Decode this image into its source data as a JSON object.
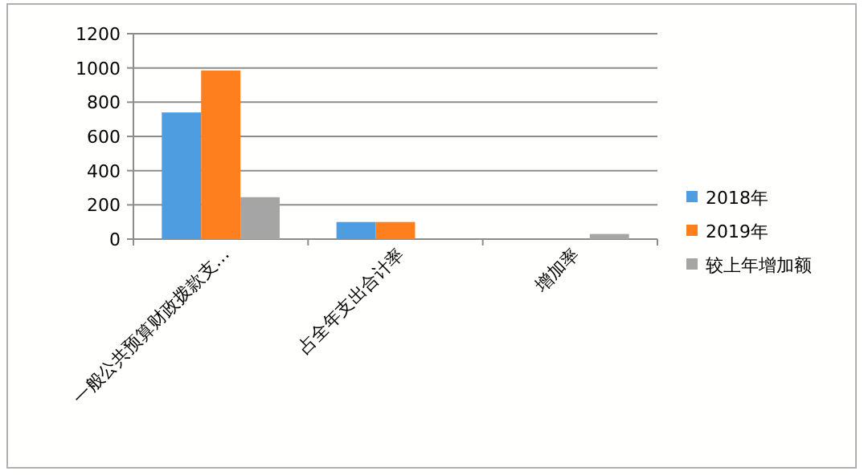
{
  "chart_data": {
    "type": "bar",
    "categories": [
      "一般公共预算财政拨款支…",
      "占全年支出合计率",
      "增加率"
    ],
    "series": [
      {
        "name": "2018年",
        "color": "#4e9de0",
        "values": [
          740,
          100,
          0
        ]
      },
      {
        "name": "2019年",
        "color": "#fd7f1e",
        "values": [
          985,
          100,
          0
        ]
      },
      {
        "name": "较上年增加额",
        "color": "#a5a5a5",
        "values": [
          245,
          0,
          30
        ]
      }
    ],
    "ylim": [
      0,
      1200
    ],
    "yticks": [
      0,
      200,
      400,
      600,
      800,
      1000,
      1200
    ],
    "grid": "y",
    "legend": "right"
  }
}
